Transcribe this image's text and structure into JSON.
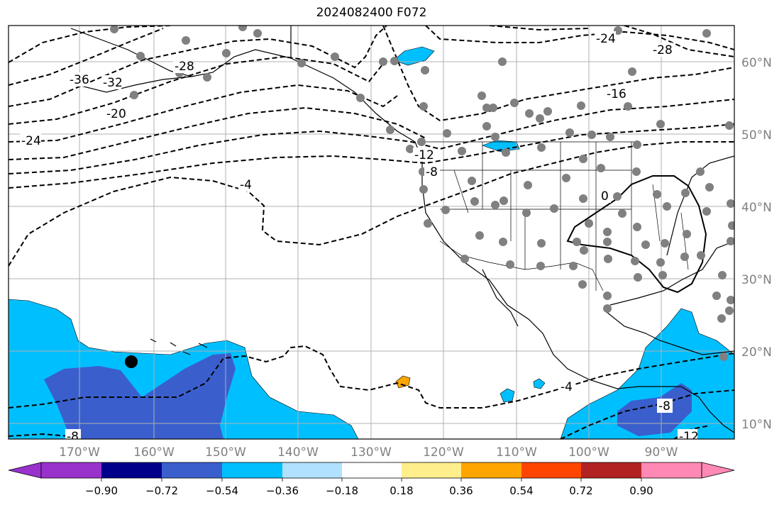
{
  "map": {
    "title": "2024082400 F072",
    "lat_labels": [
      "60°N",
      "50°N",
      "40°N",
      "30°N",
      "20°N",
      "10°N"
    ],
    "lon_labels": [
      "170°W",
      "160°W",
      "150°W",
      "140°W",
      "130°W",
      "120°W",
      "110°W",
      "100°W",
      "90°W"
    ],
    "contour_labels": [
      "-36",
      "-32",
      "-28",
      "-24",
      "-20",
      "-24",
      "-28",
      "-16",
      "-12",
      "-8",
      "-4",
      "0",
      "-4",
      "-8",
      "-8",
      "-12"
    ],
    "colorbar": {
      "colors": [
        "#9932cc",
        "#00008b",
        "#3a5fcd",
        "#00bfff",
        "#b0e2ff",
        "#ffffff",
        "#ffee8c",
        "#ffa500",
        "#ff4500",
        "#b22222",
        "#ff89b4"
      ],
      "tick_labels": [
        "−0.90",
        "−0.72",
        "−0.54",
        "−0.36",
        "−0.18",
        "0.18",
        "0.36",
        "0.54",
        "0.72",
        "0.90"
      ]
    },
    "colors": {
      "shade_light": "#00bfff",
      "shade_dark": "#3a5fcd",
      "shade_orange": "#ffa500",
      "station_dot": "#808080"
    }
  }
}
